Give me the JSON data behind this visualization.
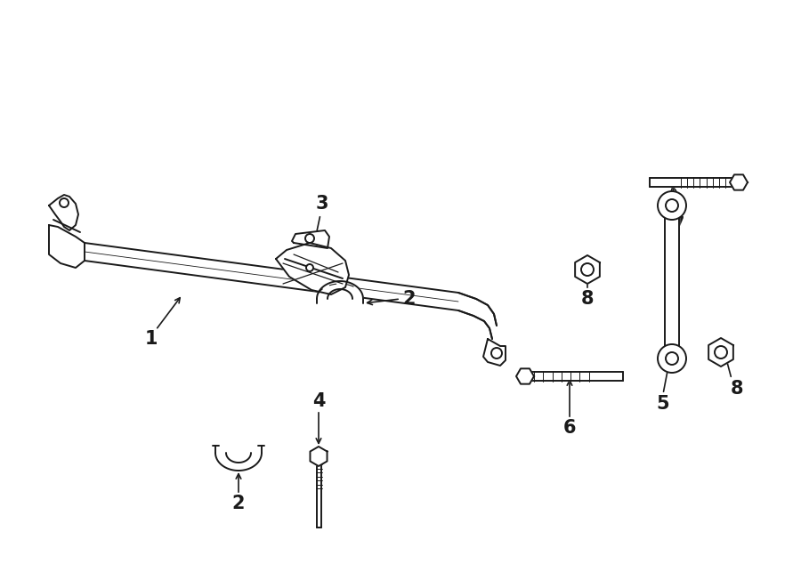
{
  "bg_color": "#ffffff",
  "line_color": "#1a1a1a",
  "lw": 1.4,
  "fig_w": 9.0,
  "fig_h": 6.61,
  "dpi": 100
}
